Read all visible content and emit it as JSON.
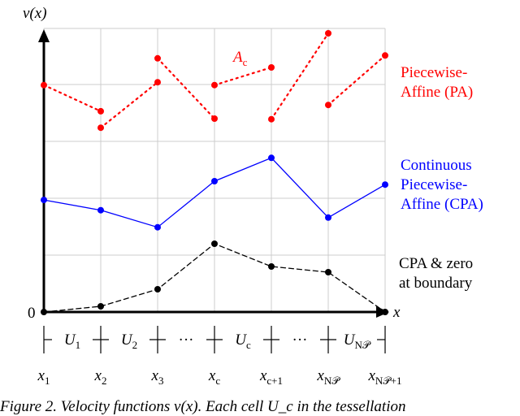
{
  "chart_data": {
    "type": "line",
    "ylabel": "v(x)",
    "xlabel": "x",
    "y_origin_label": "0",
    "ylim": [
      0,
      5
    ],
    "x_ticks": [
      "x1",
      "x2",
      "x3",
      "xc",
      "xc+1",
      "xNP",
      "xNP+1"
    ],
    "x_tick_parts": [
      [
        "x",
        "1"
      ],
      [
        "x",
        "2"
      ],
      [
        "x",
        "3"
      ],
      [
        "x",
        "c"
      ],
      [
        "x",
        "c+1"
      ],
      [
        "x",
        "N𝒫"
      ],
      [
        "x",
        "N𝒫+1"
      ]
    ],
    "cells": [
      [
        "U",
        "1"
      ],
      [
        "U",
        "2"
      ],
      [
        "···",
        ""
      ],
      [
        "U",
        "c"
      ],
      [
        "···",
        ""
      ],
      [
        "U",
        "N𝒫"
      ]
    ],
    "annotation": {
      "main": "A",
      "sub": "c"
    },
    "series": [
      {
        "name": "Piecewise-Affine (PA)",
        "label_lines": [
          "Piecewise-",
          "Affine (PA)"
        ],
        "color": "#ff0000",
        "style": "dotted",
        "segments": [
          [
            3.99,
            3.53
          ],
          [
            3.24,
            4.04
          ],
          [
            4.46,
            3.4
          ],
          [
            3.99,
            4.3
          ],
          [
            3.39,
            4.9
          ],
          [
            3.64,
            4.51
          ]
        ]
      },
      {
        "name": "Continuous Piecewise-Affine (CPA)",
        "label_lines": [
          "Continuous",
          "Piecewise-",
          "Affine (CPA)"
        ],
        "color": "#0000ff",
        "style": "solid",
        "values": [
          1.97,
          1.79,
          1.49,
          2.3,
          2.71,
          1.66,
          2.24
        ]
      },
      {
        "name": "CPA & zero at boundary",
        "label_lines": [
          "CPA & zero",
          "at boundary"
        ],
        "color": "#000000",
        "style": "dashed",
        "values": [
          0,
          0.1,
          0.4,
          1.2,
          0.8,
          0.7,
          0
        ]
      }
    ]
  },
  "caption": "Figure 2. Velocity functions v(x). Each cell U_c in the tessellation"
}
